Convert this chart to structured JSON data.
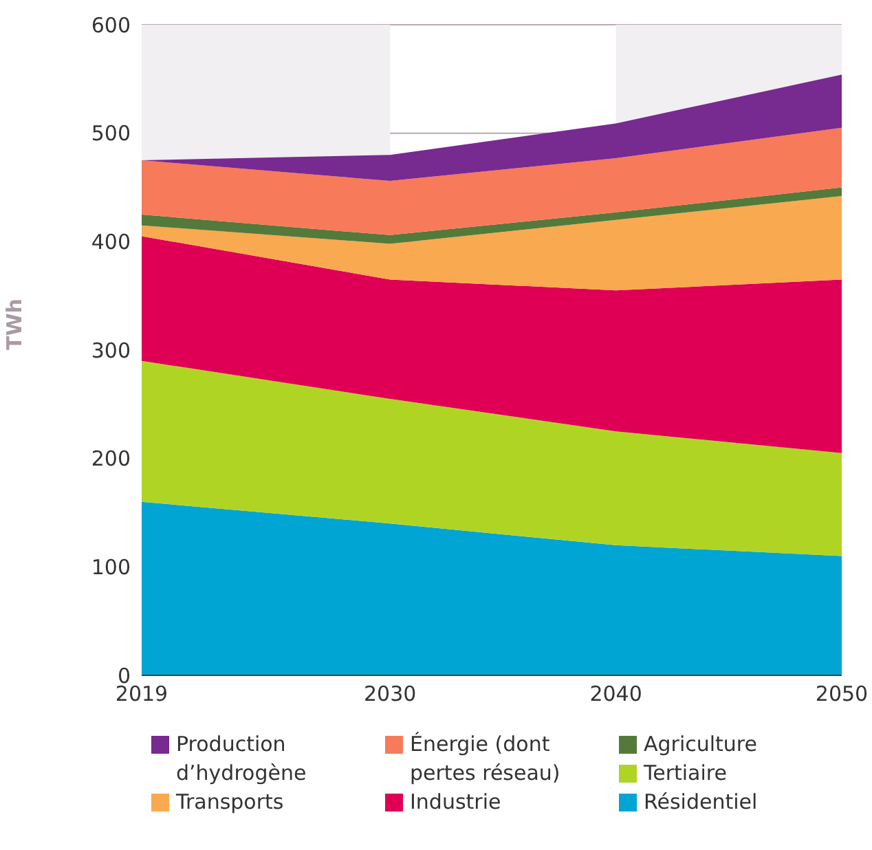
{
  "chart_data": {
    "type": "area",
    "stacked": true,
    "ylabel": "TWh",
    "x": [
      2019,
      2030,
      2040,
      2050
    ],
    "xlim": [
      2019,
      2050
    ],
    "xticks": [
      2019,
      2030,
      2040,
      2050
    ],
    "ylim": [
      0,
      600
    ],
    "yticks": [
      0,
      100,
      200,
      300,
      400,
      500,
      600
    ],
    "grid": "y",
    "legend": "bottom",
    "bands": [
      {
        "axis": "x",
        "from": 2019,
        "to": 2030,
        "color": "#f1eff1"
      },
      {
        "axis": "x",
        "from": 2040,
        "to": 2050,
        "color": "#f1eff1"
      }
    ],
    "series": [
      {
        "name": "Résidentiel",
        "color": "#00a5d3",
        "values": [
          160,
          140,
          120,
          110
        ]
      },
      {
        "name": "Tertiaire",
        "color": "#b0d424",
        "values": [
          130,
          115,
          105,
          95
        ]
      },
      {
        "name": "Industrie",
        "color": "#df0056",
        "values": [
          115,
          110,
          130,
          160
        ]
      },
      {
        "name": "Transports",
        "color": "#f9a94f",
        "values": [
          10,
          33,
          65,
          77
        ]
      },
      {
        "name": "Agriculture",
        "color": "#537a3b",
        "values": [
          10,
          8,
          7,
          8
        ]
      },
      {
        "name": "Énergie (dont pertes réseau)",
        "color": "#f77a5a",
        "values": [
          50,
          50,
          50,
          55
        ]
      },
      {
        "name": "Production d’hydrogène",
        "color": "#772a8f",
        "values": [
          0,
          24,
          32,
          49
        ]
      }
    ]
  }
}
